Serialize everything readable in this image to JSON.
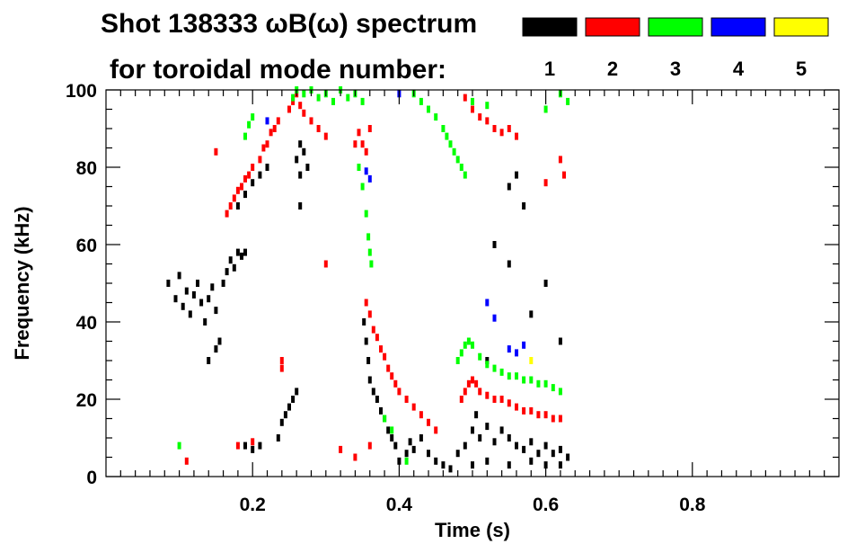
{
  "chart_data": {
    "type": "scatter",
    "title": {
      "line1": "Shot 138333 ωB(ω) spectrum",
      "line2": "for toroidal mode number:"
    },
    "xlabel": "Time (s)",
    "ylabel": "Frequency (kHz)",
    "xlim": [
      0.0,
      1.0
    ],
    "ylim": [
      0,
      100
    ],
    "xticks": [
      0.2,
      0.4,
      0.6,
      0.8
    ],
    "xtick_labels": [
      "0.2",
      "0.4",
      "0.6",
      "0.8"
    ],
    "yticks": [
      0,
      20,
      40,
      60,
      80,
      100
    ],
    "ytick_labels": [
      "0",
      "20",
      "40",
      "60",
      "80",
      "100"
    ],
    "legend": {
      "position": "top-right",
      "entries": [
        {
          "name": "1",
          "color": "#000000"
        },
        {
          "name": "2",
          "color": "#ff0000"
        },
        {
          "name": "3",
          "color": "#00ff00"
        },
        {
          "name": "4",
          "color": "#0000ff"
        },
        {
          "name": "5",
          "color": "#ffff00"
        }
      ]
    },
    "series": [
      {
        "name": "1",
        "color": "#000000",
        "points": [
          [
            0.085,
            50
          ],
          [
            0.095,
            46
          ],
          [
            0.1,
            52
          ],
          [
            0.105,
            44
          ],
          [
            0.11,
            48
          ],
          [
            0.115,
            42
          ],
          [
            0.12,
            47
          ],
          [
            0.125,
            50
          ],
          [
            0.13,
            45
          ],
          [
            0.135,
            40
          ],
          [
            0.14,
            46
          ],
          [
            0.145,
            49
          ],
          [
            0.15,
            43
          ],
          [
            0.155,
            35
          ],
          [
            0.16,
            50
          ],
          [
            0.165,
            53
          ],
          [
            0.17,
            56
          ],
          [
            0.175,
            54
          ],
          [
            0.18,
            58
          ],
          [
            0.185,
            57
          ],
          [
            0.14,
            30
          ],
          [
            0.15,
            33
          ],
          [
            0.19,
            58
          ],
          [
            0.19,
            73
          ],
          [
            0.2,
            76
          ],
          [
            0.21,
            78
          ],
          [
            0.22,
            80
          ],
          [
            0.18,
            70
          ],
          [
            0.26,
            82
          ],
          [
            0.265,
            86
          ],
          [
            0.27,
            84
          ],
          [
            0.265,
            78
          ],
          [
            0.275,
            80
          ],
          [
            0.265,
            70
          ],
          [
            0.235,
            10
          ],
          [
            0.24,
            14
          ],
          [
            0.245,
            16
          ],
          [
            0.25,
            18
          ],
          [
            0.255,
            20
          ],
          [
            0.26,
            22
          ],
          [
            0.19,
            8
          ],
          [
            0.2,
            7
          ],
          [
            0.21,
            8
          ],
          [
            0.352,
            40
          ],
          [
            0.355,
            35
          ],
          [
            0.358,
            30
          ],
          [
            0.36,
            25
          ],
          [
            0.365,
            22
          ],
          [
            0.37,
            20
          ],
          [
            0.375,
            17
          ],
          [
            0.38,
            15
          ],
          [
            0.385,
            12
          ],
          [
            0.39,
            10
          ],
          [
            0.395,
            8
          ],
          [
            0.4,
            4
          ],
          [
            0.41,
            6
          ],
          [
            0.415,
            9
          ],
          [
            0.42,
            7
          ],
          [
            0.43,
            10
          ],
          [
            0.44,
            6
          ],
          [
            0.45,
            4
          ],
          [
            0.46,
            3
          ],
          [
            0.47,
            2
          ],
          [
            0.48,
            6
          ],
          [
            0.49,
            8
          ],
          [
            0.5,
            12
          ],
          [
            0.505,
            16
          ],
          [
            0.51,
            10
          ],
          [
            0.52,
            13
          ],
          [
            0.53,
            9
          ],
          [
            0.54,
            12
          ],
          [
            0.55,
            10
          ],
          [
            0.56,
            8
          ],
          [
            0.57,
            7
          ],
          [
            0.58,
            9
          ],
          [
            0.59,
            6
          ],
          [
            0.6,
            8
          ],
          [
            0.61,
            6
          ],
          [
            0.62,
            7
          ],
          [
            0.63,
            5
          ],
          [
            0.5,
            3
          ],
          [
            0.52,
            4
          ],
          [
            0.55,
            3
          ],
          [
            0.58,
            4
          ],
          [
            0.6,
            3
          ],
          [
            0.62,
            3
          ],
          [
            0.53,
            60
          ],
          [
            0.55,
            55
          ],
          [
            0.57,
            70
          ],
          [
            0.6,
            50
          ],
          [
            0.58,
            42
          ],
          [
            0.52,
            30
          ],
          [
            0.62,
            35
          ],
          [
            0.55,
            75
          ],
          [
            0.56,
            78
          ]
        ]
      },
      {
        "name": "2",
        "color": "#ff0000",
        "points": [
          [
            0.165,
            68
          ],
          [
            0.17,
            70
          ],
          [
            0.175,
            72
          ],
          [
            0.18,
            74
          ],
          [
            0.185,
            75
          ],
          [
            0.19,
            77
          ],
          [
            0.195,
            78
          ],
          [
            0.2,
            80
          ],
          [
            0.21,
            82
          ],
          [
            0.215,
            85
          ],
          [
            0.22,
            86
          ],
          [
            0.225,
            89
          ],
          [
            0.23,
            90
          ],
          [
            0.235,
            92
          ],
          [
            0.15,
            84
          ],
          [
            0.25,
            95
          ],
          [
            0.255,
            97
          ],
          [
            0.26,
            99
          ],
          [
            0.265,
            96
          ],
          [
            0.27,
            94
          ],
          [
            0.28,
            92
          ],
          [
            0.29,
            90
          ],
          [
            0.3,
            88
          ],
          [
            0.34,
            86
          ],
          [
            0.345,
            89
          ],
          [
            0.35,
            86
          ],
          [
            0.355,
            84
          ],
          [
            0.36,
            90
          ],
          [
            0.355,
            45
          ],
          [
            0.36,
            42
          ],
          [
            0.365,
            38
          ],
          [
            0.37,
            36
          ],
          [
            0.375,
            33
          ],
          [
            0.38,
            31
          ],
          [
            0.385,
            28
          ],
          [
            0.39,
            26
          ],
          [
            0.395,
            24
          ],
          [
            0.4,
            22
          ],
          [
            0.41,
            20
          ],
          [
            0.42,
            18
          ],
          [
            0.43,
            16
          ],
          [
            0.44,
            14
          ],
          [
            0.45,
            12
          ],
          [
            0.485,
            20
          ],
          [
            0.49,
            22
          ],
          [
            0.495,
            24
          ],
          [
            0.5,
            25
          ],
          [
            0.505,
            24
          ],
          [
            0.51,
            22
          ],
          [
            0.52,
            21
          ],
          [
            0.53,
            20
          ],
          [
            0.54,
            20
          ],
          [
            0.55,
            19
          ],
          [
            0.56,
            18
          ],
          [
            0.57,
            17
          ],
          [
            0.58,
            17
          ],
          [
            0.59,
            16
          ],
          [
            0.6,
            16
          ],
          [
            0.61,
            15
          ],
          [
            0.62,
            15
          ],
          [
            0.49,
            98
          ],
          [
            0.5,
            95
          ],
          [
            0.51,
            93
          ],
          [
            0.52,
            92
          ],
          [
            0.53,
            90
          ],
          [
            0.54,
            89
          ],
          [
            0.55,
            90
          ],
          [
            0.56,
            88
          ],
          [
            0.11,
            4
          ],
          [
            0.18,
            8
          ],
          [
            0.2,
            9
          ],
          [
            0.32,
            7
          ],
          [
            0.34,
            5
          ],
          [
            0.36,
            8
          ],
          [
            0.62,
            82
          ],
          [
            0.625,
            78
          ],
          [
            0.6,
            76
          ],
          [
            0.24,
            28
          ],
          [
            0.24,
            30
          ],
          [
            0.3,
            55
          ]
        ]
      },
      {
        "name": "3",
        "color": "#00ff00",
        "points": [
          [
            0.19,
            88
          ],
          [
            0.195,
            91
          ],
          [
            0.2,
            93
          ],
          [
            0.255,
            98
          ],
          [
            0.26,
            100
          ],
          [
            0.27,
            99
          ],
          [
            0.28,
            100
          ],
          [
            0.29,
            98
          ],
          [
            0.3,
            99
          ],
          [
            0.31,
            97
          ],
          [
            0.32,
            100
          ],
          [
            0.33,
            98
          ],
          [
            0.34,
            99
          ],
          [
            0.35,
            97
          ],
          [
            0.345,
            80
          ],
          [
            0.35,
            75
          ],
          [
            0.355,
            68
          ],
          [
            0.358,
            62
          ],
          [
            0.36,
            58
          ],
          [
            0.362,
            55
          ],
          [
            0.38,
            15
          ],
          [
            0.39,
            12
          ],
          [
            0.42,
            99
          ],
          [
            0.43,
            97
          ],
          [
            0.44,
            95
          ],
          [
            0.45,
            93
          ],
          [
            0.46,
            90
          ],
          [
            0.465,
            88
          ],
          [
            0.47,
            86
          ],
          [
            0.475,
            84
          ],
          [
            0.48,
            82
          ],
          [
            0.485,
            80
          ],
          [
            0.49,
            78
          ],
          [
            0.48,
            30
          ],
          [
            0.485,
            32
          ],
          [
            0.49,
            34
          ],
          [
            0.495,
            35
          ],
          [
            0.5,
            34
          ],
          [
            0.51,
            31
          ],
          [
            0.52,
            29
          ],
          [
            0.53,
            28
          ],
          [
            0.54,
            27
          ],
          [
            0.55,
            26
          ],
          [
            0.56,
            26
          ],
          [
            0.57,
            25
          ],
          [
            0.58,
            25
          ],
          [
            0.59,
            24
          ],
          [
            0.6,
            24
          ],
          [
            0.61,
            23
          ],
          [
            0.62,
            22
          ],
          [
            0.5,
            97
          ],
          [
            0.52,
            96
          ],
          [
            0.6,
            95
          ],
          [
            0.62,
            99
          ],
          [
            0.63,
            97
          ],
          [
            0.1,
            8
          ],
          [
            0.41,
            4
          ]
        ]
      },
      {
        "name": "4",
        "color": "#0000ff",
        "points": [
          [
            0.355,
            79
          ],
          [
            0.36,
            77
          ],
          [
            0.52,
            45
          ],
          [
            0.53,
            41
          ],
          [
            0.55,
            33
          ],
          [
            0.56,
            32
          ],
          [
            0.57,
            34
          ],
          [
            0.22,
            92
          ],
          [
            0.4,
            99
          ]
        ]
      },
      {
        "name": "5",
        "color": "#ffff00",
        "points": [
          [
            0.58,
            30
          ]
        ]
      }
    ]
  }
}
